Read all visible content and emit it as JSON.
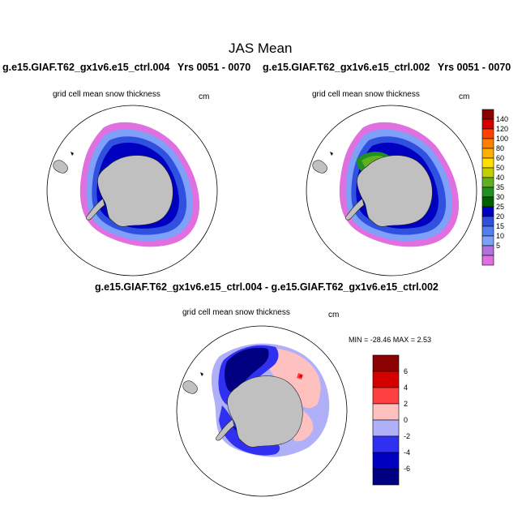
{
  "main_title": "JAS Mean",
  "left_case": "g.e15.GIAF.T62_gx1v6.e15_ctrl.004",
  "left_years": "Yrs 0051 - 0070",
  "right_case": "g.e15.GIAF.T62_gx1v6.e15_ctrl.002",
  "right_years": "Yrs 0051 - 0070",
  "top_left_panel": {
    "variable": "grid cell mean snow thickness",
    "units": "cm"
  },
  "top_right_panel": {
    "variable": "grid cell mean snow thickness",
    "units": "cm"
  },
  "diff_title": "g.e15.GIAF.T62_gx1v6.e15_ctrl.004 - g.e15.GIAF.T62_gx1v6.e15_ctrl.002",
  "diff_panel": {
    "variable": "grid cell mean snow thickness",
    "units": "cm",
    "min_max": "MIN = -28.46 MAX =   2.53"
  },
  "colorbar_top": {
    "labels": [
      "140",
      "120",
      "100",
      "80",
      "60",
      "50",
      "40",
      "35",
      "30",
      "25",
      "20",
      "15",
      "10",
      "5"
    ],
    "colors": [
      "#8b0000",
      "#d40000",
      "#ff4000",
      "#ff8000",
      "#ffb000",
      "#ffe000",
      "#c0d000",
      "#60b020",
      "#209020",
      "#006000",
      "#0000c0",
      "#3050e0",
      "#5080f0",
      "#7fa0f8",
      "#b070e0",
      "#e070e0"
    ]
  },
  "colorbar_diff": {
    "labels": [
      "6",
      "4",
      "2",
      "0",
      "-2",
      "-4",
      "-6"
    ],
    "colors": [
      "#8b0000",
      "#d40000",
      "#ff4040",
      "#ffc0c0",
      "#b0b0f8",
      "#3030f0",
      "#0000c0",
      "#000080"
    ]
  }
}
